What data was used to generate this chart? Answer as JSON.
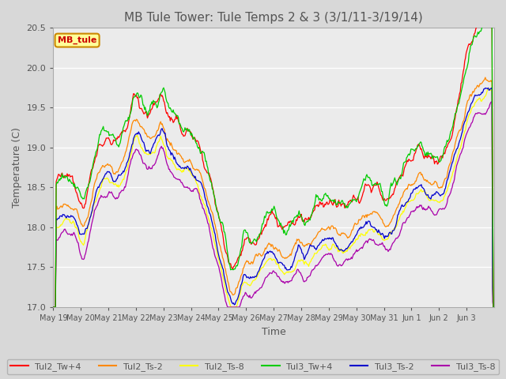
{
  "title": "MB Tule Tower: Tule Temps 2 & 3 (3/1/11-3/19/14)",
  "xlabel": "Time",
  "ylabel": "Temperature (C)",
  "ylim": [
    17.0,
    20.5
  ],
  "fig_bg": "#d8d8d8",
  "plot_bg": "#ebebeb",
  "grid_color": "#ffffff",
  "legend_label": "MB_tule",
  "x_tick_labels": [
    "May 19",
    "May 20",
    "May 21",
    "May 22",
    "May 23",
    "May 24",
    "May 25",
    "May 26",
    "May 27",
    "May 28",
    "May 29",
    "May 30",
    "May 31",
    "Jun 1",
    "Jun 2",
    "Jun 3"
  ],
  "series_colors": {
    "Tul2_Tw+4": "#ff0000",
    "Tul2_Ts-2": "#ff8800",
    "Tul2_Ts-8": "#ffff00",
    "Tul3_Tw+4": "#00cc00",
    "Tul3_Ts-2": "#0000cc",
    "Tul3_Ts-8": "#aa00aa"
  }
}
